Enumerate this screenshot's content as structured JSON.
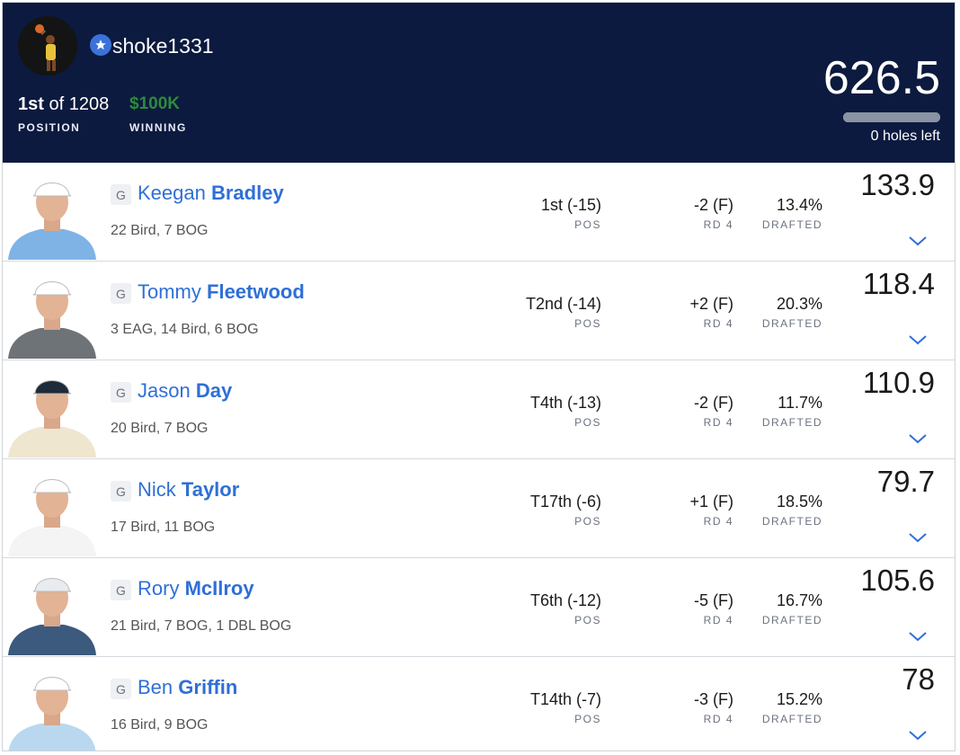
{
  "header": {
    "username": "shoke1331",
    "position_rank": "1st",
    "position_suffix": " of 1208",
    "position_label": "POSITION",
    "winning_value": "$100K",
    "winning_label": "WINNING",
    "total_score": "626.5",
    "holes_left": "0 holes left",
    "progress_fraction": 1.0,
    "colors": {
      "header_bg": "#0c1a3f",
      "winning": "#2e8b3a",
      "accent": "#3b72d9"
    },
    "icons": {
      "badge": "star-icon"
    }
  },
  "players": [
    {
      "badge": "G",
      "first": "Keegan",
      "last": "Bradley",
      "stats": "22 Bird, 7 BOG",
      "pos": "1st (-15)",
      "pos_label": "POS",
      "rd": "-2 (F)",
      "rd_label": "RD 4",
      "drafted": "13.4%",
      "drafted_label": "DRAFTED",
      "points": "133.9",
      "shirt": "#7fb3e6",
      "cap": "#ffffff"
    },
    {
      "badge": "G",
      "first": "Tommy",
      "last": "Fleetwood",
      "stats": "3 EAG, 14 Bird, 6 BOG",
      "pos": "T2nd (-14)",
      "pos_label": "POS",
      "rd": "+2 (F)",
      "rd_label": "RD 4",
      "drafted": "20.3%",
      "drafted_label": "DRAFTED",
      "points": "118.4",
      "shirt": "#6e7377",
      "cap": "#ffffff"
    },
    {
      "badge": "G",
      "first": "Jason",
      "last": "Day",
      "stats": "20 Bird, 7 BOG",
      "pos": "T4th (-13)",
      "pos_label": "POS",
      "rd": "-2 (F)",
      "rd_label": "RD 4",
      "drafted": "11.7%",
      "drafted_label": "DRAFTED",
      "points": "110.9",
      "shirt": "#eee6cf",
      "cap": "#1f2a3a"
    },
    {
      "badge": "G",
      "first": "Nick",
      "last": "Taylor",
      "stats": "17 Bird, 11 BOG",
      "pos": "T17th (-6)",
      "pos_label": "POS",
      "rd": "+1 (F)",
      "rd_label": "RD 4",
      "drafted": "18.5%",
      "drafted_label": "DRAFTED",
      "points": "79.7",
      "shirt": "#f4f4f4",
      "cap": "#ffffff"
    },
    {
      "badge": "G",
      "first": "Rory",
      "last": "McIlroy",
      "stats": "21 Bird, 7 BOG, 1 DBL BOG",
      "pos": "T6th (-12)",
      "pos_label": "POS",
      "rd": "-5 (F)",
      "rd_label": "RD 4",
      "drafted": "16.7%",
      "drafted_label": "DRAFTED",
      "points": "105.6",
      "shirt": "#3b5a7e",
      "cap": "#e9ecef"
    },
    {
      "badge": "G",
      "first": "Ben",
      "last": "Griffin",
      "stats": "16 Bird, 9 BOG",
      "pos": "T14th (-7)",
      "pos_label": "POS",
      "rd": "-3 (F)",
      "rd_label": "RD 4",
      "drafted": "15.2%",
      "drafted_label": "DRAFTED",
      "points": "78",
      "shirt": "#b9d8ef",
      "cap": "#ffffff"
    }
  ],
  "icons": {
    "row_expand": "chevron-down-icon",
    "player_photo": "player-photo",
    "position_badge": "g-badge"
  }
}
